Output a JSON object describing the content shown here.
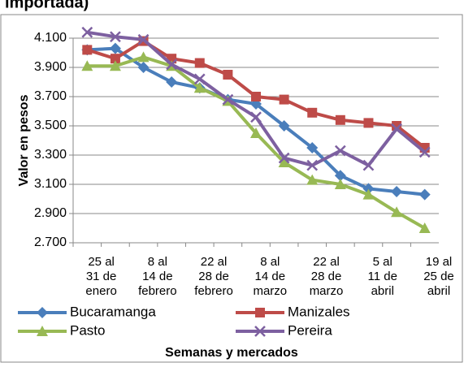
{
  "chart_data": {
    "type": "line",
    "title": "importada)",
    "x_label": "Semanas y mercados",
    "y_label": "Valor en pesos",
    "categories": [
      "25 al 31 de enero",
      null,
      "8 al 14 de febrero",
      null,
      "22 al 28 de febrero",
      null,
      "8 al 14 de marzo",
      null,
      "22 al 28 de marzo",
      null,
      "5 al 11 de abril",
      null,
      "19 al 25 de abril"
    ],
    "series": [
      {
        "name": "Bucaramanga",
        "color": "#4a7ebb",
        "marker": "diamond",
        "values": [
          4020,
          4030,
          3900,
          3800,
          3760,
          3680,
          3650,
          3500,
          3350,
          3160,
          3070,
          3050,
          3030
        ]
      },
      {
        "name": "Manizales",
        "color": "#be4b48",
        "marker": "square",
        "values": [
          4020,
          3960,
          4080,
          3960,
          3930,
          3850,
          3700,
          3680,
          3590,
          3540,
          3520,
          3500,
          3350
        ]
      },
      {
        "name": "Pasto",
        "color": "#98b954",
        "marker": "triangle",
        "values": [
          3910,
          3910,
          3970,
          3910,
          3760,
          3670,
          3450,
          3250,
          3130,
          3100,
          3030,
          2910,
          2800
        ]
      },
      {
        "name": "Pereira",
        "color": "#7d60a0",
        "marker": "x",
        "values": [
          4140,
          4110,
          4090,
          3920,
          3820,
          3680,
          3560,
          3280,
          3230,
          3330,
          3230,
          3480,
          3320
        ]
      }
    ],
    "ylim": [
      2700,
      4100
    ],
    "yticks": [
      {
        "value": 2700,
        "label": "2.700"
      },
      {
        "value": 2900,
        "label": "2.900"
      },
      {
        "value": 3100,
        "label": "3.100"
      },
      {
        "value": 3300,
        "label": "3.300"
      },
      {
        "value": 3500,
        "label": "3.500"
      },
      {
        "value": 3700,
        "label": "3.700"
      },
      {
        "value": 3900,
        "label": "3.900"
      },
      {
        "value": 4100,
        "label": "4.100"
      }
    ],
    "grid": true,
    "legend": "bottom"
  }
}
